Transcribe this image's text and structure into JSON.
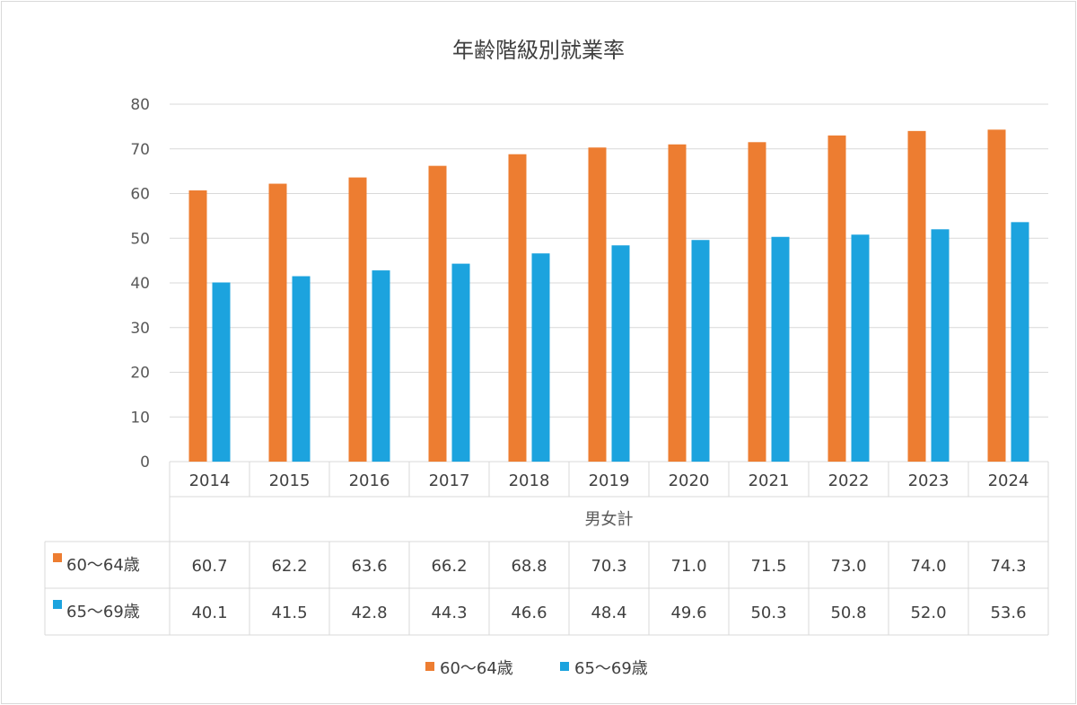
{
  "chart_data": {
    "type": "bar",
    "title": "年齢階級別就業率",
    "xlabel": "",
    "ylabel": "",
    "ylim": [
      0,
      80
    ],
    "yticks": [
      0,
      10,
      20,
      30,
      40,
      50,
      60,
      70,
      80
    ],
    "grid": true,
    "categories": [
      "2014",
      "2015",
      "2016",
      "2017",
      "2018",
      "2019",
      "2020",
      "2021",
      "2022",
      "2023",
      "2024"
    ],
    "category_group": "男女計",
    "series": [
      {
        "name": "60～64歳",
        "color": "#ED7D31",
        "values": [
          60.7,
          62.2,
          63.6,
          66.2,
          68.8,
          70.3,
          71.0,
          71.5,
          73.0,
          74.0,
          74.3
        ]
      },
      {
        "name": "65～69歳",
        "color": "#1CA3DE",
        "values": [
          40.1,
          41.5,
          42.8,
          44.3,
          46.6,
          48.4,
          49.6,
          50.3,
          50.8,
          52.0,
          53.6
        ]
      }
    ],
    "data_table": true,
    "legend_position": "bottom"
  }
}
